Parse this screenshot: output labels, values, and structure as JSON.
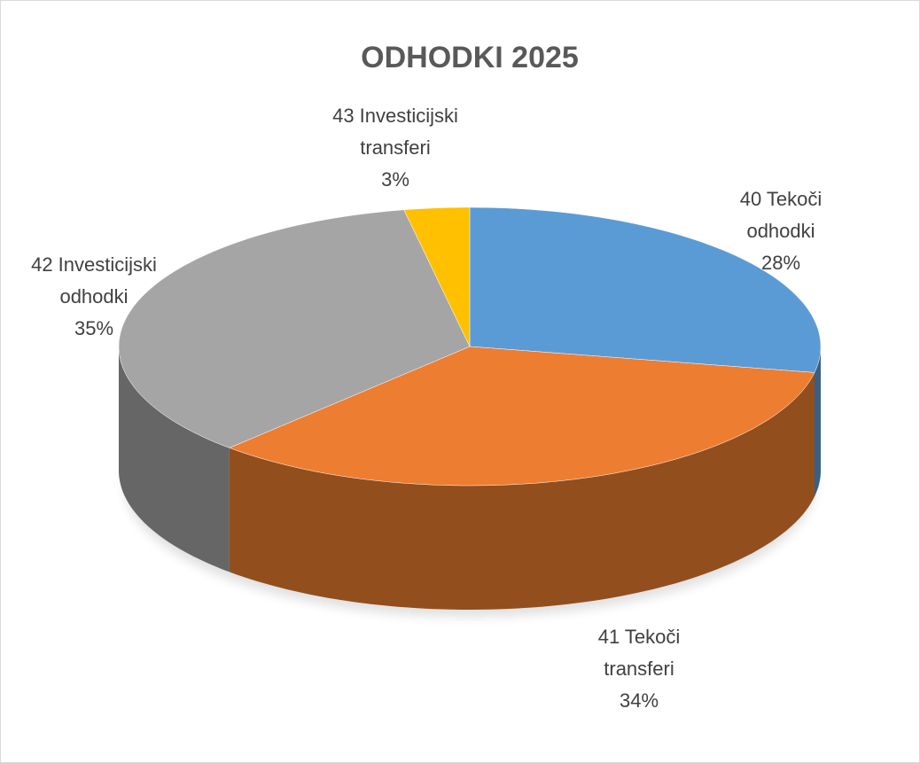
{
  "chart_data": {
    "type": "pie",
    "title": "ODHODKI 2025",
    "categories": [
      "40 Tekoči odhodki",
      "41 Tekoči transferi",
      "42 Investicijski odhodki",
      "43 Investicijski transferi"
    ],
    "values": [
      28,
      34,
      35,
      3
    ],
    "value_labels": [
      "28%",
      "34%",
      "35%",
      "3%"
    ],
    "colors": [
      "#5b9bd5",
      "#ed7d31",
      "#a5a5a5",
      "#ffc000"
    ]
  }
}
